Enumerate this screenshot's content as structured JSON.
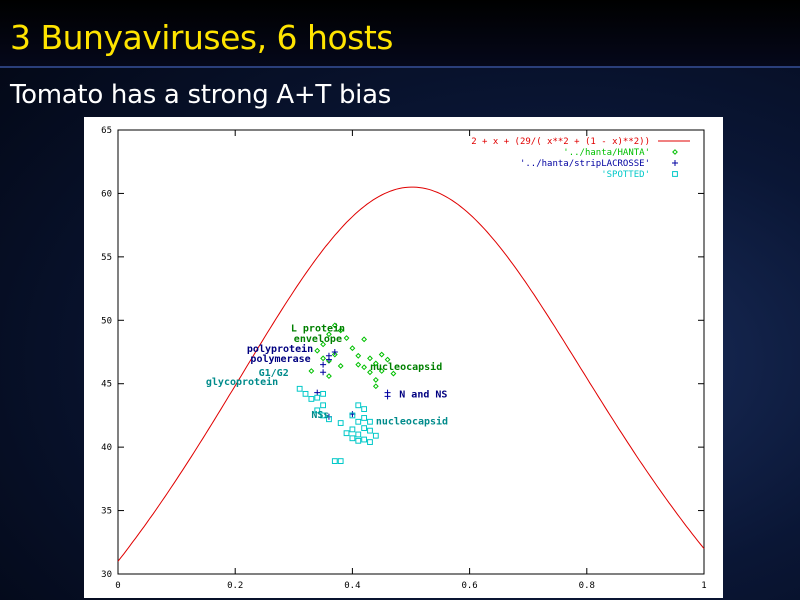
{
  "slide": {
    "title": "3 Bunyaviruses, 6 hosts",
    "subtitle": "Tomato has a strong A+T bias"
  },
  "colors": {
    "title": "#ffe400",
    "curve": "#e00000",
    "hanta": "#00c000",
    "lacrosse": "#0000a0",
    "spotted": "#00c8c8",
    "green_label": "#008000",
    "blue_label": "#000080",
    "cyan_label": "#008b8b"
  },
  "chart_data": {
    "type": "scatter",
    "xlim": [
      0,
      1
    ],
    "ylim": [
      30,
      65
    ],
    "x_ticks": [
      "0",
      "0.2",
      "0.4",
      "0.6",
      "0.8",
      "1"
    ],
    "y_ticks": [
      "30",
      "35",
      "40",
      "45",
      "50",
      "55",
      "60",
      "65"
    ],
    "grid": false,
    "legend_position": "top-right",
    "series": [
      {
        "name": "2 + x + (29/( x**2 + (1 - x)**2))",
        "kind": "line",
        "formula": "2 + x + 29/(x^2 + (1-x)^2)"
      },
      {
        "name": "'../hanta/HANTA'",
        "kind": "points",
        "marker": "diamond",
        "points": [
          [
            0.34,
            47.6
          ],
          [
            0.35,
            48.1
          ],
          [
            0.36,
            48.9
          ],
          [
            0.37,
            49.6
          ],
          [
            0.38,
            49.2
          ],
          [
            0.39,
            48.6
          ],
          [
            0.35,
            47.0
          ],
          [
            0.36,
            46.8
          ],
          [
            0.37,
            47.3
          ],
          [
            0.38,
            46.4
          ],
          [
            0.4,
            47.8
          ],
          [
            0.41,
            47.2
          ],
          [
            0.42,
            48.5
          ],
          [
            0.42,
            46.3
          ],
          [
            0.43,
            47.0
          ],
          [
            0.43,
            45.9
          ],
          [
            0.44,
            46.6
          ],
          [
            0.44,
            45.3
          ],
          [
            0.45,
            47.3
          ],
          [
            0.45,
            46.0
          ],
          [
            0.46,
            46.9
          ],
          [
            0.41,
            46.5
          ],
          [
            0.33,
            46.0
          ],
          [
            0.36,
            45.6
          ],
          [
            0.47,
            45.8
          ],
          [
            0.44,
            44.8
          ]
        ]
      },
      {
        "name": "'../hanta/stripLACROSSE'",
        "kind": "points",
        "marker": "plus",
        "points": [
          [
            0.36,
            47.2
          ],
          [
            0.37,
            47.5
          ],
          [
            0.35,
            46.5
          ],
          [
            0.36,
            46.9
          ],
          [
            0.35,
            45.9
          ],
          [
            0.34,
            44.3
          ],
          [
            0.36,
            42.4
          ],
          [
            0.4,
            42.6
          ],
          [
            0.46,
            44.3
          ],
          [
            0.46,
            44.0
          ]
        ]
      },
      {
        "name": "'SPOTTED'",
        "kind": "points",
        "marker": "square",
        "points": [
          [
            0.31,
            44.6
          ],
          [
            0.32,
            44.2
          ],
          [
            0.33,
            43.8
          ],
          [
            0.34,
            43.9
          ],
          [
            0.35,
            43.3
          ],
          [
            0.34,
            42.9
          ],
          [
            0.35,
            42.5
          ],
          [
            0.36,
            42.2
          ],
          [
            0.38,
            41.9
          ],
          [
            0.39,
            41.1
          ],
          [
            0.4,
            41.4
          ],
          [
            0.4,
            40.7
          ],
          [
            0.41,
            41.0
          ],
          [
            0.41,
            42.0
          ],
          [
            0.42,
            41.5
          ],
          [
            0.42,
            42.3
          ],
          [
            0.43,
            41.3
          ],
          [
            0.42,
            40.6
          ],
          [
            0.43,
            40.4
          ],
          [
            0.44,
            40.9
          ],
          [
            0.41,
            40.5
          ],
          [
            0.4,
            42.5
          ],
          [
            0.42,
            43.0
          ],
          [
            0.37,
            38.9
          ],
          [
            0.38,
            38.9
          ],
          [
            0.35,
            44.2
          ],
          [
            0.43,
            42.0
          ],
          [
            0.41,
            43.3
          ]
        ]
      }
    ],
    "annotations": [
      {
        "text": "L protein",
        "x": 0.295,
        "y": 49.1,
        "color_key": "green_label"
      },
      {
        "text": "envelope",
        "x": 0.3,
        "y": 48.3,
        "color_key": "green_label"
      },
      {
        "text": "polyprotein",
        "x": 0.22,
        "y": 47.5,
        "color_key": "blue_label"
      },
      {
        "text": "polymerase",
        "x": 0.226,
        "y": 46.7,
        "color_key": "blue_label"
      },
      {
        "text": "nucleocapsid",
        "x": 0.43,
        "y": 46.1,
        "color_key": "green_label"
      },
      {
        "text": "G1/G2",
        "x": 0.24,
        "y": 45.6,
        "color_key": "cyan_label"
      },
      {
        "text": "glycoprotein",
        "x": 0.15,
        "y": 44.9,
        "color_key": "cyan_label"
      },
      {
        "text": "N and NS",
        "x": 0.48,
        "y": 43.9,
        "color_key": "blue_label"
      },
      {
        "text": "NSs",
        "x": 0.33,
        "y": 42.3,
        "color_key": "cyan_label"
      },
      {
        "text": "nucleocapsid",
        "x": 0.44,
        "y": 41.8,
        "color_key": "cyan_label"
      }
    ]
  }
}
